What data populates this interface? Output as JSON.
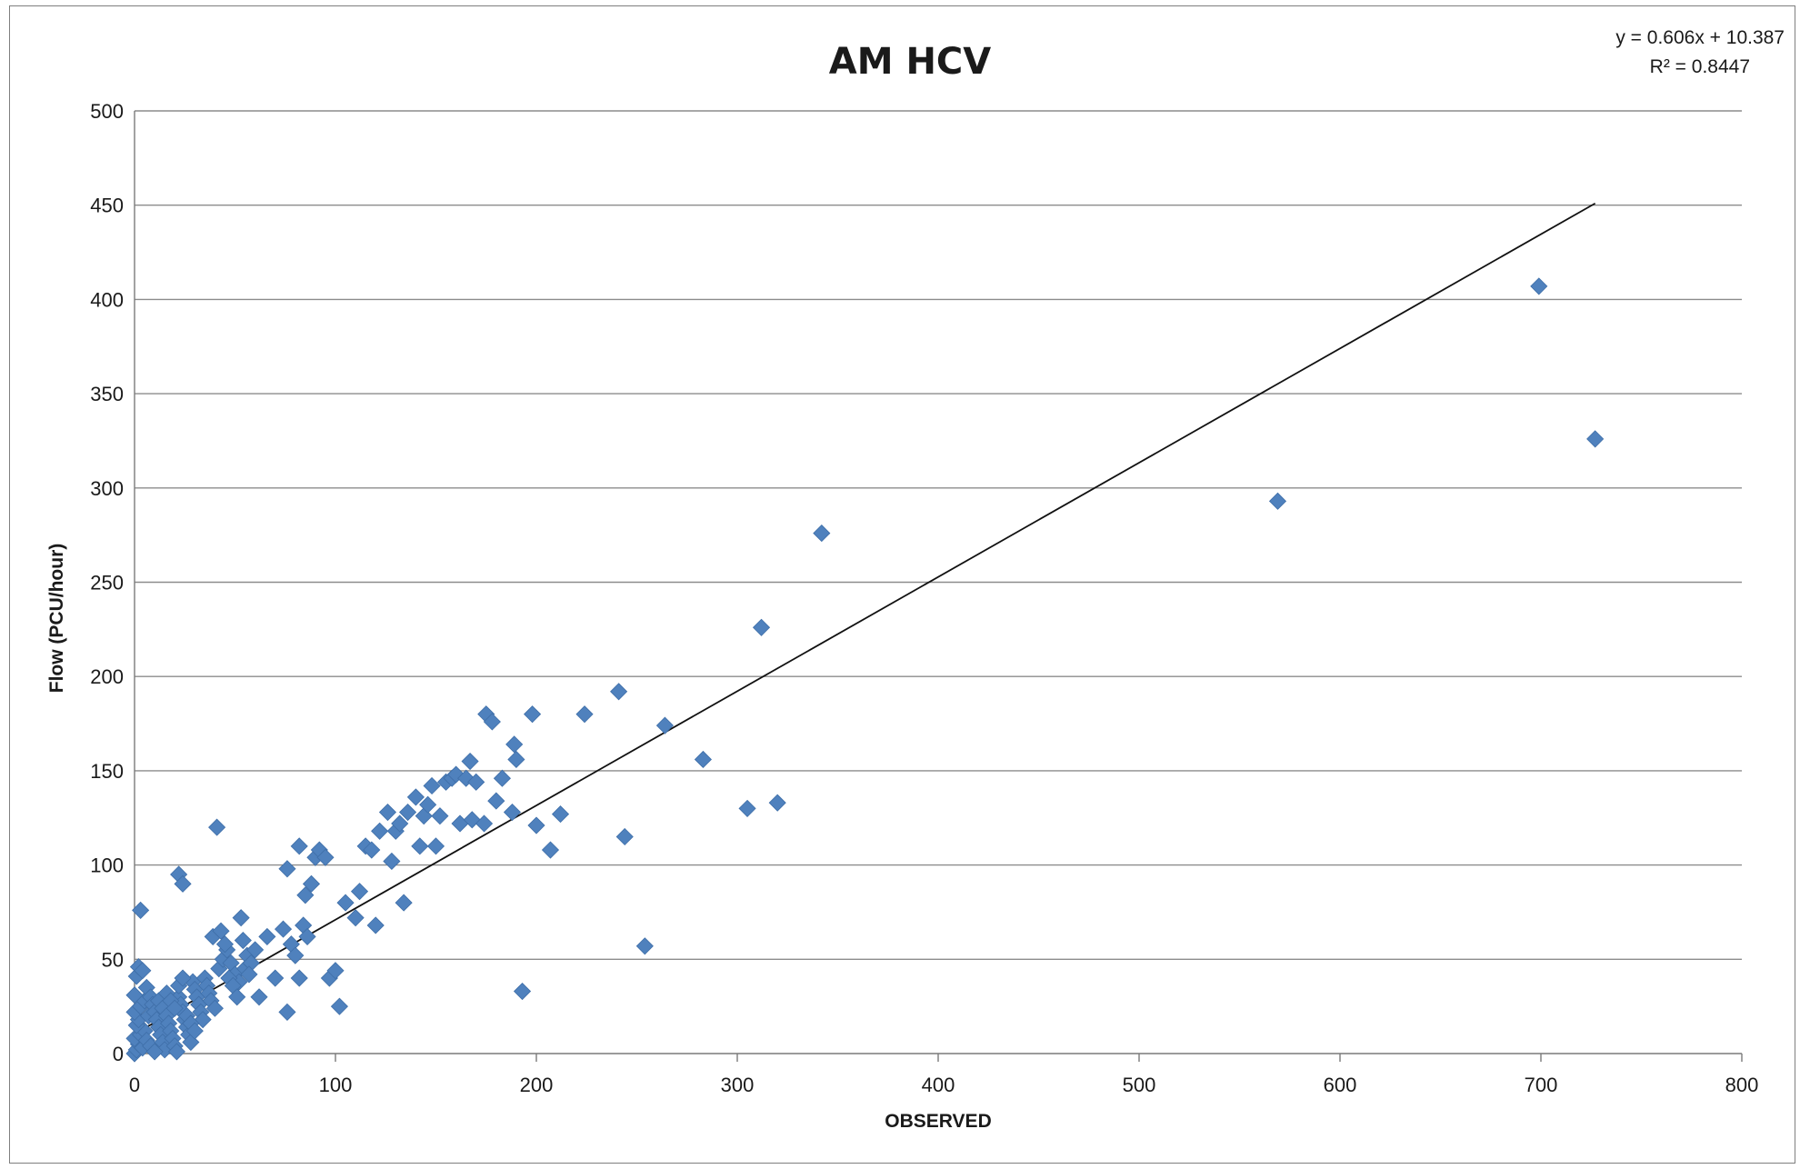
{
  "chart_data": {
    "type": "scatter",
    "title": "AM HCV",
    "xlabel": "OBSERVED",
    "ylabel": "Flow (PCU/hour)",
    "xlim": [
      0,
      800
    ],
    "ylim": [
      0,
      500
    ],
    "xticks": [
      0,
      100,
      200,
      300,
      400,
      500,
      600,
      700,
      800
    ],
    "yticks": [
      0,
      50,
      100,
      150,
      200,
      250,
      300,
      350,
      400,
      450,
      500
    ],
    "grid": "horizontal",
    "legend": "none",
    "marker_color": "#4f81bd",
    "trendline": {
      "type": "linear",
      "slope": 0.606,
      "intercept": 10.387,
      "equation_label": "y = 0.606x + 10.387",
      "r2_label": "R² = 0.8447",
      "x_range": [
        0,
        727
      ]
    },
    "series": [
      {
        "points": [
          [
            0,
            0
          ],
          [
            1,
            2
          ],
          [
            2,
            5
          ],
          [
            0,
            8
          ],
          [
            3,
            10
          ],
          [
            4,
            3
          ],
          [
            5,
            12
          ],
          [
            1,
            15
          ],
          [
            6,
            7
          ],
          [
            2,
            18
          ],
          [
            0,
            22
          ],
          [
            7,
            20
          ],
          [
            8,
            4
          ],
          [
            3,
            25
          ],
          [
            5,
            28
          ],
          [
            0,
            31
          ],
          [
            1,
            41
          ],
          [
            2,
            46
          ],
          [
            4,
            44
          ],
          [
            6,
            35
          ],
          [
            8,
            30
          ],
          [
            9,
            26
          ],
          [
            10,
            22
          ],
          [
            11,
            18
          ],
          [
            12,
            14
          ],
          [
            13,
            10
          ],
          [
            14,
            6
          ],
          [
            15,
            2
          ],
          [
            10,
            1
          ],
          [
            12,
            28
          ],
          [
            14,
            24
          ],
          [
            16,
            20
          ],
          [
            17,
            16
          ],
          [
            18,
            12
          ],
          [
            19,
            8
          ],
          [
            20,
            4
          ],
          [
            21,
            1
          ],
          [
            3,
            76
          ],
          [
            22,
            30
          ],
          [
            23,
            26
          ],
          [
            24,
            22
          ],
          [
            25,
            18
          ],
          [
            26,
            14
          ],
          [
            27,
            10
          ],
          [
            28,
            6
          ],
          [
            29,
            38
          ],
          [
            30,
            34
          ],
          [
            31,
            30
          ],
          [
            32,
            26
          ],
          [
            33,
            22
          ],
          [
            34,
            18
          ],
          [
            16,
            32
          ],
          [
            18,
            28
          ],
          [
            20,
            24
          ],
          [
            22,
            36
          ],
          [
            24,
            40
          ],
          [
            26,
            20
          ],
          [
            28,
            16
          ],
          [
            30,
            12
          ],
          [
            22,
            95
          ],
          [
            24,
            90
          ],
          [
            35,
            40
          ],
          [
            36,
            36
          ],
          [
            37,
            32
          ],
          [
            38,
            28
          ],
          [
            40,
            24
          ],
          [
            42,
            45
          ],
          [
            44,
            50
          ],
          [
            46,
            55
          ],
          [
            48,
            48
          ],
          [
            50,
            42
          ],
          [
            52,
            38
          ],
          [
            54,
            60
          ],
          [
            55,
            45
          ],
          [
            56,
            52
          ],
          [
            58,
            48
          ],
          [
            60,
            55
          ],
          [
            39,
            62
          ],
          [
            41,
            120
          ],
          [
            43,
            65
          ],
          [
            45,
            58
          ],
          [
            47,
            40
          ],
          [
            49,
            36
          ],
          [
            51,
            30
          ],
          [
            53,
            72
          ],
          [
            57,
            42
          ],
          [
            62,
            30
          ],
          [
            66,
            62
          ],
          [
            70,
            40
          ],
          [
            74,
            66
          ],
          [
            76,
            22
          ],
          [
            78,
            58
          ],
          [
            80,
            52
          ],
          [
            82,
            40
          ],
          [
            84,
            68
          ],
          [
            86,
            62
          ],
          [
            76,
            98
          ],
          [
            82,
            110
          ],
          [
            85,
            84
          ],
          [
            88,
            90
          ],
          [
            90,
            104
          ],
          [
            92,
            108
          ],
          [
            95,
            104
          ],
          [
            97,
            40
          ],
          [
            100,
            44
          ],
          [
            102,
            25
          ],
          [
            105,
            80
          ],
          [
            110,
            72
          ],
          [
            112,
            86
          ],
          [
            115,
            110
          ],
          [
            118,
            108
          ],
          [
            120,
            68
          ],
          [
            122,
            118
          ],
          [
            126,
            128
          ],
          [
            128,
            102
          ],
          [
            130,
            118
          ],
          [
            132,
            122
          ],
          [
            134,
            80
          ],
          [
            136,
            128
          ],
          [
            140,
            136
          ],
          [
            142,
            110
          ],
          [
            144,
            126
          ],
          [
            146,
            132
          ],
          [
            148,
            142
          ],
          [
            150,
            110
          ],
          [
            152,
            126
          ],
          [
            155,
            144
          ],
          [
            158,
            146
          ],
          [
            160,
            148
          ],
          [
            162,
            122
          ],
          [
            165,
            146
          ],
          [
            167,
            155
          ],
          [
            168,
            124
          ],
          [
            170,
            144
          ],
          [
            174,
            122
          ],
          [
            175,
            180
          ],
          [
            178,
            176
          ],
          [
            180,
            134
          ],
          [
            183,
            146
          ],
          [
            188,
            128
          ],
          [
            189,
            164
          ],
          [
            190,
            156
          ],
          [
            193,
            33
          ],
          [
            198,
            180
          ],
          [
            200,
            121
          ],
          [
            207,
            108
          ],
          [
            212,
            127
          ],
          [
            224,
            180
          ],
          [
            241,
            192
          ],
          [
            244,
            115
          ],
          [
            254,
            57
          ],
          [
            264,
            174
          ],
          [
            283,
            156
          ],
          [
            305,
            130
          ],
          [
            312,
            226
          ],
          [
            320,
            133
          ],
          [
            342,
            276
          ],
          [
            569,
            293
          ],
          [
            699,
            407
          ],
          [
            727,
            326
          ]
        ]
      }
    ]
  }
}
